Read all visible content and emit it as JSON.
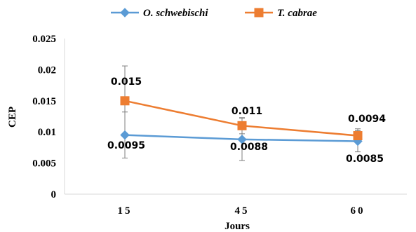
{
  "chart_data": {
    "type": "line",
    "xlabel": "Jours",
    "ylabel": "CEP",
    "categories": [
      "15",
      "45",
      "60"
    ],
    "ylim": [
      0,
      0.025
    ],
    "yticks": [
      "0",
      "0.005",
      "0.01",
      "0.015",
      "0.02",
      "0.025"
    ],
    "legend_position": "top",
    "grid": false,
    "series": [
      {
        "name": "O. schwebischi",
        "color": "#5b9bd5",
        "marker": "diamond",
        "values": [
          0.0095,
          0.0088,
          0.0085
        ],
        "labels": [
          "0.0095",
          "0.0088",
          "0.0085"
        ],
        "error": [
          0.0037,
          0.0034,
          0.0017
        ]
      },
      {
        "name": "T. cabrae",
        "color": "#ed7d31",
        "marker": "square",
        "values": [
          0.015,
          0.011,
          0.0094
        ],
        "labels": [
          "0.015",
          "0.011",
          "0.0094"
        ],
        "error": [
          0.0056,
          0.0013,
          0.0011
        ]
      }
    ]
  }
}
